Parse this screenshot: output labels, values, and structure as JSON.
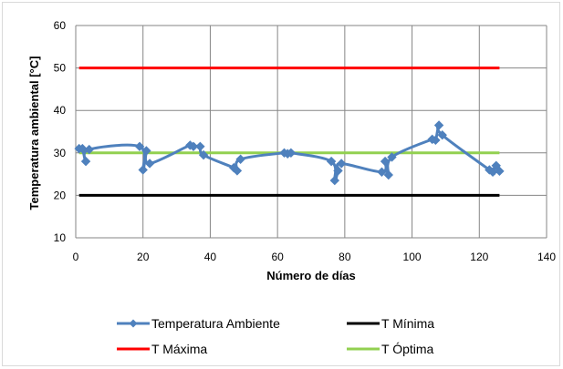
{
  "chart_data": {
    "type": "line",
    "title": "",
    "xlabel": "Número de días",
    "ylabel": "Temperatura ambiental [°C]",
    "xlim": [
      0,
      140
    ],
    "ylim": [
      10,
      60
    ],
    "xticks": [
      "0",
      "20",
      "40",
      "60",
      "80",
      "100",
      "120",
      "140"
    ],
    "yticks": [
      "10",
      "20",
      "30",
      "40",
      "50",
      "60"
    ],
    "grid": true,
    "legend_position": "bottom",
    "series": [
      {
        "name": "Temperatura  Ambiente",
        "color": "#4f81bd",
        "marker": "diamond",
        "smooth": true,
        "x": [
          1,
          2,
          3,
          4,
          19,
          20,
          21,
          22,
          34,
          35,
          37,
          38,
          47,
          48,
          49,
          62,
          63,
          64,
          76,
          77,
          78,
          79,
          91,
          92,
          93,
          94,
          106,
          107,
          108,
          109,
          123,
          124,
          125,
          126
        ],
        "y": [
          31,
          31,
          28,
          30.8,
          31.5,
          26,
          30.5,
          27.5,
          31.8,
          31.5,
          31.5,
          29.5,
          26.5,
          25.8,
          28.5,
          30,
          29.8,
          30,
          28,
          23.5,
          25.8,
          27.5,
          25.5,
          28,
          24.8,
          29,
          33.2,
          33,
          36.5,
          34.2,
          26,
          25.5,
          27,
          25.7
        ]
      },
      {
        "name": "T Mínima",
        "color": "#000000",
        "marker": "none",
        "x": [
          1,
          126
        ],
        "y": [
          20,
          20
        ]
      },
      {
        "name": "T Máxima",
        "color": "#ff0000",
        "marker": "none",
        "x": [
          1,
          126
        ],
        "y": [
          50,
          50
        ]
      },
      {
        "name": "T Óptima",
        "color": "#92d050",
        "marker": "none",
        "x": [
          1,
          126
        ],
        "y": [
          30,
          30
        ]
      }
    ]
  }
}
